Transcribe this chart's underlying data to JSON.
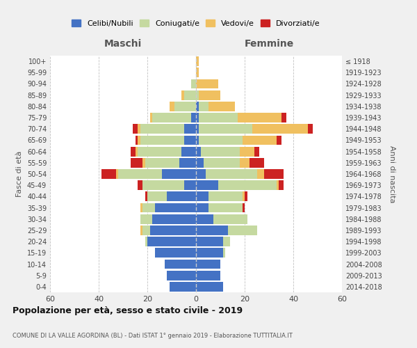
{
  "age_groups": [
    "0-4",
    "5-9",
    "10-14",
    "15-19",
    "20-24",
    "25-29",
    "30-34",
    "35-39",
    "40-44",
    "45-49",
    "50-54",
    "55-59",
    "60-64",
    "65-69",
    "70-74",
    "75-79",
    "80-84",
    "85-89",
    "90-94",
    "95-99",
    "100+"
  ],
  "birth_years": [
    "2014-2018",
    "2009-2013",
    "2004-2008",
    "1999-2003",
    "1994-1998",
    "1989-1993",
    "1984-1988",
    "1979-1983",
    "1974-1978",
    "1969-1973",
    "1964-1968",
    "1959-1963",
    "1954-1958",
    "1949-1953",
    "1944-1948",
    "1939-1943",
    "1934-1938",
    "1929-1933",
    "1924-1928",
    "1919-1923",
    "≤ 1918"
  ],
  "maschi": {
    "celibi": [
      11,
      12,
      13,
      17,
      20,
      19,
      18,
      17,
      12,
      5,
      14,
      7,
      6,
      5,
      5,
      2,
      0,
      0,
      0,
      0,
      0
    ],
    "coniugati": [
      0,
      0,
      0,
      0,
      1,
      3,
      5,
      5,
      8,
      17,
      18,
      14,
      18,
      18,
      18,
      16,
      9,
      5,
      2,
      0,
      0
    ],
    "vedovi": [
      0,
      0,
      0,
      0,
      0,
      1,
      0,
      1,
      0,
      0,
      1,
      1,
      1,
      1,
      1,
      1,
      2,
      1,
      0,
      0,
      0
    ],
    "divorziati": [
      0,
      0,
      0,
      0,
      0,
      0,
      0,
      0,
      1,
      2,
      6,
      5,
      2,
      1,
      2,
      0,
      0,
      0,
      0,
      0,
      0
    ]
  },
  "femmine": {
    "nubili": [
      11,
      10,
      10,
      11,
      11,
      13,
      7,
      5,
      5,
      9,
      4,
      3,
      2,
      1,
      1,
      1,
      1,
      0,
      0,
      0,
      0
    ],
    "coniugate": [
      0,
      0,
      0,
      1,
      3,
      12,
      14,
      14,
      14,
      24,
      21,
      15,
      16,
      18,
      22,
      16,
      4,
      1,
      0,
      0,
      0
    ],
    "vedove": [
      0,
      0,
      0,
      0,
      0,
      0,
      0,
      0,
      1,
      1,
      3,
      4,
      6,
      14,
      23,
      18,
      11,
      9,
      9,
      1,
      1
    ],
    "divorziate": [
      0,
      0,
      0,
      0,
      0,
      0,
      0,
      1,
      1,
      2,
      8,
      6,
      2,
      2,
      2,
      2,
      0,
      0,
      0,
      0,
      0
    ]
  },
  "colors": {
    "celibi_nubili": "#4472c4",
    "coniugati": "#c5d9a0",
    "vedovi": "#f0c060",
    "divorziati": "#cc2222"
  },
  "title": "Popolazione per età, sesso e stato civile - 2019",
  "subtitle": "COMUNE DI LA VALLE AGORDINA (BL) - Dati ISTAT 1° gennaio 2019 - Elaborazione TUTTITALIA.IT",
  "xlabel_left": "Maschi",
  "xlabel_right": "Femmine",
  "ylabel_left": "Fasce di età",
  "ylabel_right": "Anni di nascita",
  "xlim": 60,
  "background_color": "#f0f0f0",
  "plot_bg": "#ffffff"
}
